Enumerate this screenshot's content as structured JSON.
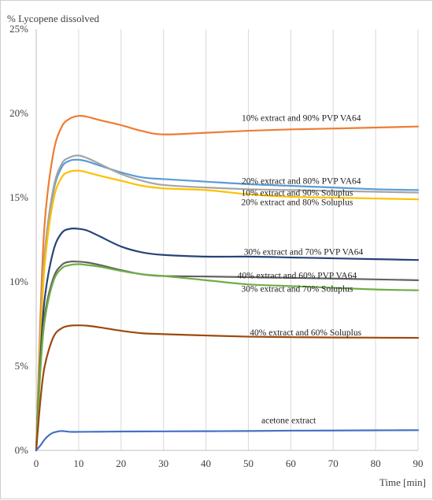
{
  "chart_data": {
    "type": "line",
    "title": "",
    "ylabel": "% Lycopene dissolved",
    "xlabel": "Time [min]",
    "xlim": [
      0,
      90
    ],
    "ylim": [
      0,
      25
    ],
    "xticks": [
      0,
      10,
      20,
      30,
      40,
      50,
      60,
      70,
      80,
      90
    ],
    "yticks": [
      {
        "value": 0,
        "label": "0%"
      },
      {
        "value": 5,
        "label": "5%"
      },
      {
        "value": 10,
        "label": "10%"
      },
      {
        "value": 15,
        "label": "15%"
      },
      {
        "value": 20,
        "label": "20%"
      },
      {
        "value": 25,
        "label": "25%"
      }
    ],
    "grid": "vertical",
    "series": [
      {
        "name": "10% extract and 90% PVP VA64",
        "color": "#ED7D31",
        "x": [
          0,
          1,
          2,
          4,
          6,
          8,
          10,
          12,
          15,
          20,
          25,
          30,
          40,
          50,
          60,
          70,
          80,
          90
        ],
        "y": [
          0,
          8,
          13.5,
          17.6,
          19.2,
          19.7,
          19.85,
          19.8,
          19.6,
          19.3,
          18.95,
          18.75,
          18.85,
          18.97,
          19.05,
          19.1,
          19.16,
          19.22
        ]
      },
      {
        "name": "20% extract and 80% PVP VA64",
        "color": "#5B9BD5",
        "x": [
          0,
          1,
          2,
          4,
          6,
          8,
          10,
          12,
          15,
          20,
          25,
          30,
          40,
          50,
          60,
          70,
          80,
          90
        ],
        "y": [
          0,
          7,
          11.5,
          15.3,
          16.8,
          17.2,
          17.25,
          17.15,
          16.9,
          16.5,
          16.2,
          16.1,
          15.95,
          15.8,
          15.7,
          15.6,
          15.5,
          15.45
        ]
      },
      {
        "name": "10% extract and 90% Soluplus",
        "color": "#A5A5A5",
        "x": [
          0,
          1,
          2,
          4,
          6,
          8,
          10,
          12,
          15,
          20,
          25,
          30,
          40,
          50,
          60,
          70,
          80,
          90
        ],
        "y": [
          0,
          7,
          11.7,
          15.5,
          17.0,
          17.4,
          17.5,
          17.35,
          17.0,
          16.4,
          16.0,
          15.75,
          15.6,
          15.5,
          15.45,
          15.4,
          15.35,
          15.3
        ]
      },
      {
        "name": "20% extract and 80% Soluplus",
        "color": "#FFC000",
        "x": [
          0,
          1,
          2,
          4,
          6,
          8,
          10,
          12,
          15,
          20,
          25,
          30,
          40,
          50,
          60,
          70,
          80,
          90
        ],
        "y": [
          0,
          6.5,
          11,
          14.8,
          16.2,
          16.55,
          16.6,
          16.5,
          16.3,
          16.0,
          15.7,
          15.55,
          15.45,
          15.2,
          15.05,
          15.0,
          14.95,
          14.9
        ]
      },
      {
        "name": "30% extract and 70% PVP VA64",
        "color": "#264478",
        "x": [
          0,
          1,
          2,
          4,
          6,
          8,
          10,
          12,
          15,
          20,
          25,
          30,
          40,
          50,
          60,
          70,
          80,
          90
        ],
        "y": [
          0,
          5.5,
          9,
          11.8,
          12.9,
          13.15,
          13.15,
          13.05,
          12.7,
          12.1,
          11.75,
          11.6,
          11.5,
          11.5,
          11.45,
          11.4,
          11.35,
          11.3
        ]
      },
      {
        "name": "40% extract and 60% PVP VA64",
        "color": "#636363",
        "x": [
          0,
          1,
          2,
          4,
          6,
          8,
          10,
          12,
          15,
          20,
          25,
          30,
          40,
          50,
          60,
          70,
          80,
          90
        ],
        "y": [
          0,
          5,
          8,
          10.2,
          11.0,
          11.2,
          11.2,
          11.15,
          11.0,
          10.7,
          10.45,
          10.35,
          10.32,
          10.28,
          10.24,
          10.2,
          10.15,
          10.1
        ]
      },
      {
        "name": "30% extract and 70% Soluplus",
        "color": "#70AD47",
        "x": [
          0,
          1,
          2,
          4,
          6,
          8,
          10,
          12,
          15,
          20,
          25,
          30,
          40,
          50,
          60,
          70,
          80,
          90
        ],
        "y": [
          0,
          4.8,
          7.7,
          10.0,
          10.8,
          11.0,
          11.05,
          11.0,
          10.9,
          10.65,
          10.45,
          10.35,
          10.1,
          9.85,
          9.75,
          9.65,
          9.55,
          9.5
        ]
      },
      {
        "name": "40% extract and 60% Soluplus",
        "color": "#9E480E",
        "x": [
          0,
          1,
          2,
          4,
          6,
          8,
          10,
          12,
          15,
          20,
          25,
          30,
          40,
          50,
          60,
          70,
          80,
          90
        ],
        "y": [
          0,
          3,
          5,
          6.7,
          7.25,
          7.4,
          7.42,
          7.4,
          7.3,
          7.1,
          6.95,
          6.9,
          6.82,
          6.75,
          6.72,
          6.7,
          6.69,
          6.68
        ]
      },
      {
        "name": "acetone extract",
        "color": "#4472C4",
        "x": [
          0,
          1,
          2,
          3,
          4,
          5,
          6,
          7,
          8,
          10,
          15,
          20,
          30,
          40,
          50,
          60,
          70,
          80,
          90
        ],
        "y": [
          0,
          0.3,
          0.65,
          0.9,
          1.05,
          1.12,
          1.15,
          1.13,
          1.1,
          1.1,
          1.11,
          1.12,
          1.13,
          1.14,
          1.15,
          1.17,
          1.18,
          1.19,
          1.2
        ]
      }
    ],
    "labels": [
      {
        "text": "10% extract and 90% PVP VA64",
        "x": 62.5,
        "y": 19.75,
        "series": 0
      },
      {
        "text": "20% extract and 80% PVP VA64",
        "x": 62.5,
        "y": 16.0,
        "series": 1
      },
      {
        "text": "10% extract and 90% Soluplus",
        "x": 61.5,
        "y": 15.3,
        "series": 2
      },
      {
        "text": "20% extract and 80% Soluplus",
        "x": 61.5,
        "y": 14.75,
        "series": 3
      },
      {
        "text": "30% extract and 70% PVP VA64",
        "x": 63.0,
        "y": 11.8,
        "series": 4
      },
      {
        "text": "40% extract and 60% PVP VA64",
        "x": 61.5,
        "y": 10.4,
        "series": 5
      },
      {
        "text": "30% extract and 70% Soluplus",
        "x": 61.5,
        "y": 9.6,
        "series": 6
      },
      {
        "text": "40% extract and 60% Soluplus",
        "x": 63.5,
        "y": 7.0,
        "series": 7
      },
      {
        "text": "acetone extract",
        "x": 59.5,
        "y": 1.8,
        "series": 8
      }
    ]
  }
}
